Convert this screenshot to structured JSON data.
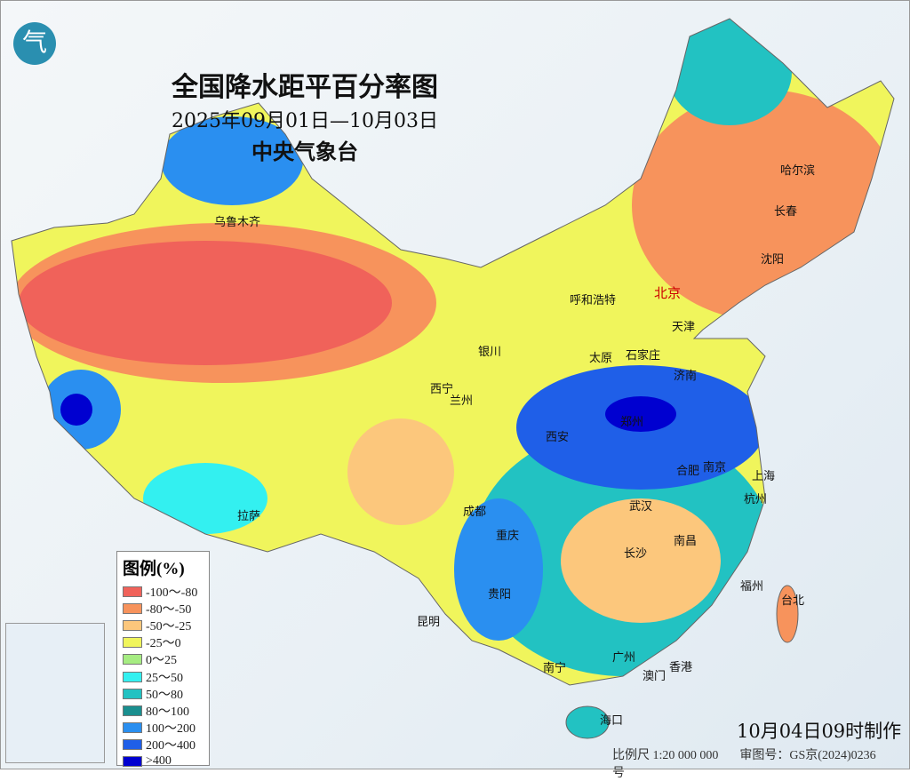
{
  "title": "全国降水距平百分率图",
  "date_range": "2025年09月01日—10月03日",
  "agency": "中央气象台",
  "logo_icon": "cma-logo-icon",
  "legend": {
    "title": "图例(%)",
    "items": [
      {
        "label": "-100～-80",
        "color": "#f0625a"
      },
      {
        "label": "-80～-50",
        "color": "#f7935c"
      },
      {
        "label": "-50～-25",
        "color": "#fcc77c"
      },
      {
        "label": "-25～0",
        "color": "#f0f55c"
      },
      {
        "label": "0～25",
        "color": "#a6ec82"
      },
      {
        "label": "25～50",
        "color": "#33f0f0"
      },
      {
        "label": "50～80",
        "color": "#22c2c2"
      },
      {
        "label": "80～100",
        "color": "#1a8f8f"
      },
      {
        "label": "100～200",
        "color": "#2a8ff0"
      },
      {
        "label": "200～400",
        "color": "#1f5fe8"
      },
      {
        "label": ">400",
        "color": "#0000d0"
      }
    ]
  },
  "cities": [
    {
      "name": "乌鲁木齐"
    },
    {
      "name": "北京"
    },
    {
      "name": "天津"
    },
    {
      "name": "呼和浩特"
    },
    {
      "name": "哈尔滨"
    },
    {
      "name": "长春"
    },
    {
      "name": "沈阳"
    },
    {
      "name": "银川"
    },
    {
      "name": "太原"
    },
    {
      "name": "石家庄"
    },
    {
      "name": "济南"
    },
    {
      "name": "西宁"
    },
    {
      "name": "兰州"
    },
    {
      "name": "郑州"
    },
    {
      "name": "西安"
    },
    {
      "name": "合肥"
    },
    {
      "name": "南京"
    },
    {
      "name": "上海"
    },
    {
      "name": "杭州"
    },
    {
      "name": "武汉"
    },
    {
      "name": "成都"
    },
    {
      "name": "重庆"
    },
    {
      "name": "南昌"
    },
    {
      "name": "长沙"
    },
    {
      "name": "拉萨"
    },
    {
      "name": "福州"
    },
    {
      "name": "台北"
    },
    {
      "name": "贵阳"
    },
    {
      "name": "昆明"
    },
    {
      "name": "南宁"
    },
    {
      "name": "广州"
    },
    {
      "name": "香港"
    },
    {
      "name": "澳门"
    },
    {
      "name": "海口"
    }
  ],
  "made_time": "10月04日09时制作",
  "scale": "比例尺 1:20 000 000",
  "map_approval": "审图号：GS京(2024)0236号"
}
